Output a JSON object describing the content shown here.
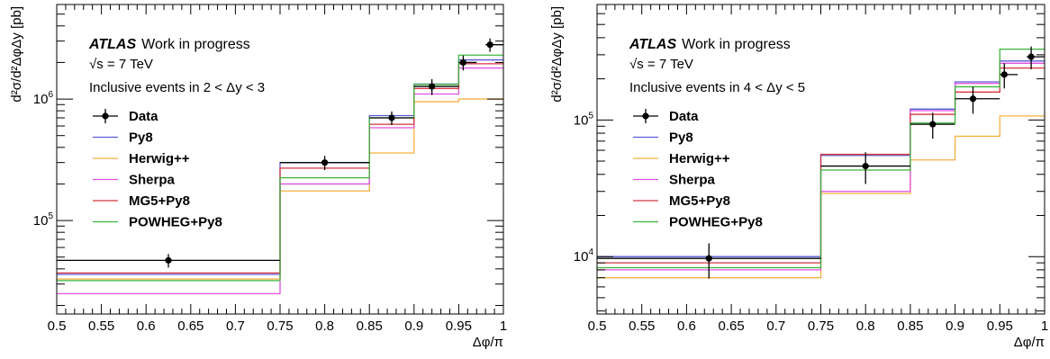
{
  "chart_data": [
    {
      "type": "line",
      "title": "",
      "xlabel": "Δφ/π",
      "ylabel": "d²σ/d²ΔφΔy [pb]",
      "y_scale": "log",
      "xlim": [
        0.5,
        1.0
      ],
      "ylim": [
        17000,
        6000000
      ],
      "x_tick_labels": [
        "0.5",
        "0.55",
        "0.6",
        "0.65",
        "0.7",
        "0.75",
        "0.8",
        "0.85",
        "0.9",
        "0.95",
        "1"
      ],
      "y_tick_labels": [
        {
          "base": "10",
          "exp": "5",
          "value": 100000
        },
        {
          "base": "10",
          "exp": "6",
          "value": 1000000
        }
      ],
      "annotations": {
        "atlas": "ATLAS",
        "status": "Work in progress",
        "energy": "√s = 7 TeV",
        "selection": "Inclusive events in 2 < Δy < 3"
      },
      "legend_placement": "left",
      "bin_edges": [
        0.5,
        0.75,
        0.85,
        0.9,
        0.95,
        1.0
      ],
      "series": [
        {
          "name": "Data",
          "style": "points",
          "color": "#000000",
          "x": [
            0.625,
            0.8,
            0.875,
            0.92,
            0.955,
            0.985
          ],
          "values": [
            47000,
            300000,
            700000,
            1270000,
            2000000,
            2800000
          ],
          "err_low": [
            6000,
            40000,
            90000,
            190000,
            280000,
            350000
          ],
          "err_high": [
            6000,
            40000,
            90000,
            190000,
            280000,
            350000
          ],
          "xerr_low": [
            0.125,
            0.05,
            0.025,
            0.02,
            0.005,
            0.005
          ],
          "xerr_high": [
            0.125,
            0.05,
            0.025,
            0.03,
            0.015,
            0.015
          ]
        },
        {
          "name": "Py8",
          "style": "step",
          "color": "#5a5ad6",
          "values": [
            36000,
            300000,
            730000,
            1330000,
            2100000,
            2900000
          ]
        },
        {
          "name": "Herwig++",
          "style": "step",
          "color": "#f5b042",
          "values": [
            33000,
            175000,
            360000,
            950000,
            1000000,
            1450000
          ]
        },
        {
          "name": "Sherpa",
          "style": "step",
          "color": "#e14fe1",
          "values": [
            25000,
            200000,
            580000,
            1100000,
            1800000,
            2400000
          ]
        },
        {
          "name": "MG5+Py8",
          "style": "step",
          "color": "#d6343f",
          "values": [
            37000,
            270000,
            620000,
            1220000,
            1950000,
            2600000
          ]
        },
        {
          "name": "POWHEG+Py8",
          "style": "step",
          "color": "#3cb43c",
          "values": [
            32000,
            225000,
            700000,
            1320000,
            2300000,
            3800000
          ]
        }
      ]
    },
    {
      "type": "line",
      "title": "",
      "xlabel": "Δφ/π",
      "ylabel": "d²σ/d²ΔφΔy [pb]",
      "y_scale": "log",
      "xlim": [
        0.5,
        1.0
      ],
      "ylim": [
        3800,
        700000
      ],
      "x_tick_labels": [
        "0.5",
        "0.55",
        "0.6",
        "0.65",
        "0.7",
        "0.75",
        "0.8",
        "0.85",
        "0.9",
        "0.95",
        "1"
      ],
      "y_tick_labels": [
        {
          "base": "10",
          "exp": "4",
          "value": 10000
        },
        {
          "base": "10",
          "exp": "5",
          "value": 100000
        }
      ],
      "annotations": {
        "atlas": "ATLAS",
        "status": "Work in progress",
        "energy": "√s = 7 TeV",
        "selection": "Inclusive events in 4 < Δy < 5"
      },
      "legend_placement": "left",
      "bin_edges": [
        0.5,
        0.75,
        0.85,
        0.9,
        0.95,
        1.0
      ],
      "series": [
        {
          "name": "Data",
          "style": "points",
          "color": "#000000",
          "x": [
            0.625,
            0.8,
            0.875,
            0.92,
            0.955,
            0.985
          ],
          "values": [
            9700,
            46000,
            93000,
            143000,
            215000,
            290000
          ],
          "err_low": [
            2800,
            12000,
            20000,
            32000,
            45000,
            55000
          ],
          "err_high": [
            2800,
            12000,
            20000,
            32000,
            45000,
            55000
          ],
          "xerr_low": [
            0.125,
            0.05,
            0.025,
            0.02,
            0.005,
            0.005
          ],
          "xerr_high": [
            0.125,
            0.05,
            0.025,
            0.03,
            0.015,
            0.015
          ]
        },
        {
          "name": "Py8",
          "style": "step",
          "color": "#5a5ad6",
          "values": [
            10000,
            55000,
            120000,
            190000,
            270000,
            320000
          ]
        },
        {
          "name": "Herwig++",
          "style": "step",
          "color": "#f5b042",
          "values": [
            7000,
            29000,
            51000,
            76000,
            107000,
            148000
          ]
        },
        {
          "name": "Sherpa",
          "style": "step",
          "color": "#e14fe1",
          "values": [
            8000,
            30000,
            117000,
            185000,
            260000,
            300000
          ]
        },
        {
          "name": "MG5+Py8",
          "style": "step",
          "color": "#d6343f",
          "values": [
            9000,
            56000,
            110000,
            160000,
            240000,
            290000
          ]
        },
        {
          "name": "POWHEG+Py8",
          "style": "step",
          "color": "#3cb43c",
          "values": [
            8300,
            43000,
            95000,
            175000,
            330000,
            470000
          ]
        }
      ]
    }
  ]
}
